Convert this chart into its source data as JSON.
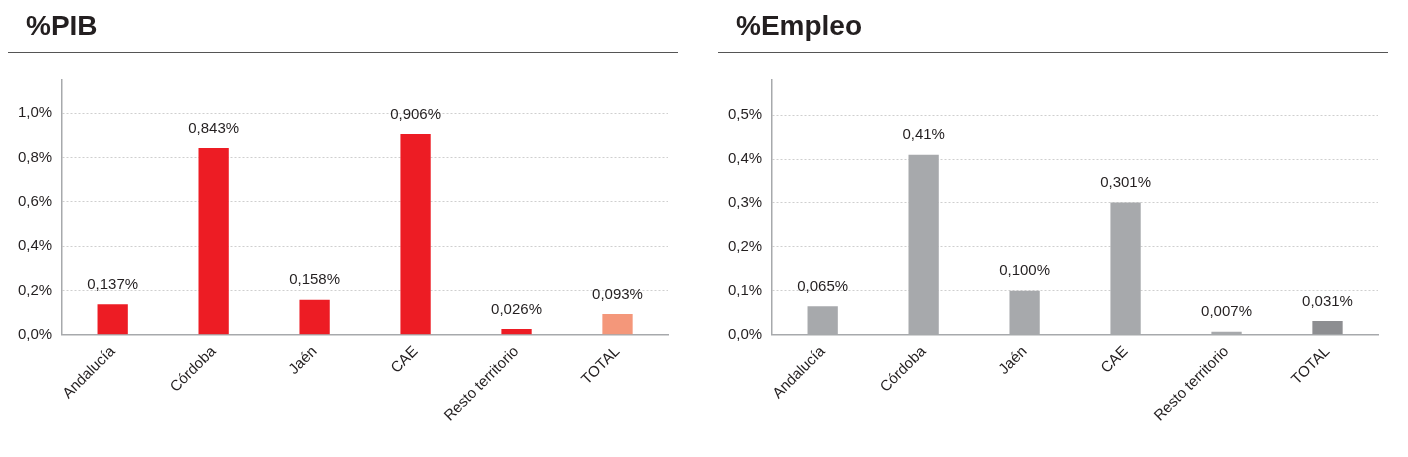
{
  "chart_data": [
    {
      "type": "bar",
      "title": "%PIB",
      "categories": [
        "Andalucía",
        "Córdoba",
        "Jaén",
        "CAE",
        "Resto territorio",
        "TOTAL"
      ],
      "values": [
        0.137,
        0.843,
        0.158,
        0.906,
        0.026,
        0.093
      ],
      "colors": [
        "#ed1c24",
        "#ed1c24",
        "#ed1c24",
        "#ed1c24",
        "#ed1c24",
        "#f4977a"
      ],
      "value_labels": [
        "0,137%",
        "0,843%",
        "0,158%",
        "0,906%",
        "0,026%",
        "0,093%"
      ],
      "ylim": [
        0,
        1.15
      ],
      "yticks": [
        {
          "value": 0,
          "label": "0,0%"
        },
        {
          "value": 0.2,
          "label": "0,2%"
        },
        {
          "value": 0.4,
          "label": "0,4%"
        },
        {
          "value": 0.6,
          "label": "0,6%"
        },
        {
          "value": 0.8,
          "label": "0,8%"
        },
        {
          "value": 1,
          "label": "1,0%"
        }
      ],
      "grid": "y",
      "legend": false
    },
    {
      "type": "bar",
      "title": "%Empleo",
      "categories": [
        "Andalucía",
        "Córdoba",
        "Jaén",
        "CAE",
        "Resto territorio",
        "TOTAL"
      ],
      "values": [
        0.065,
        0.41,
        0.1,
        0.301,
        0.007,
        0.031
      ],
      "colors": [
        "#a7a9ac",
        "#a7a9ac",
        "#a7a9ac",
        "#a7a9ac",
        "#a7a9ac",
        "#8d8e91"
      ],
      "value_labels": [
        "0,065%",
        "0,41%",
        "0,100%",
        "0,301%",
        "0,007%",
        "0,031%"
      ],
      "ylim": [
        0,
        0.58
      ],
      "yticks": [
        {
          "value": 0,
          "label": "0,0%"
        },
        {
          "value": 0.1,
          "label": "0,1%"
        },
        {
          "value": 0.2,
          "label": "0,2%"
        },
        {
          "value": 0.3,
          "label": "0,3%"
        },
        {
          "value": 0.4,
          "label": "0,4%"
        },
        {
          "value": 0.5,
          "label": "0,5%"
        }
      ],
      "grid": "y",
      "legend": false
    }
  ]
}
